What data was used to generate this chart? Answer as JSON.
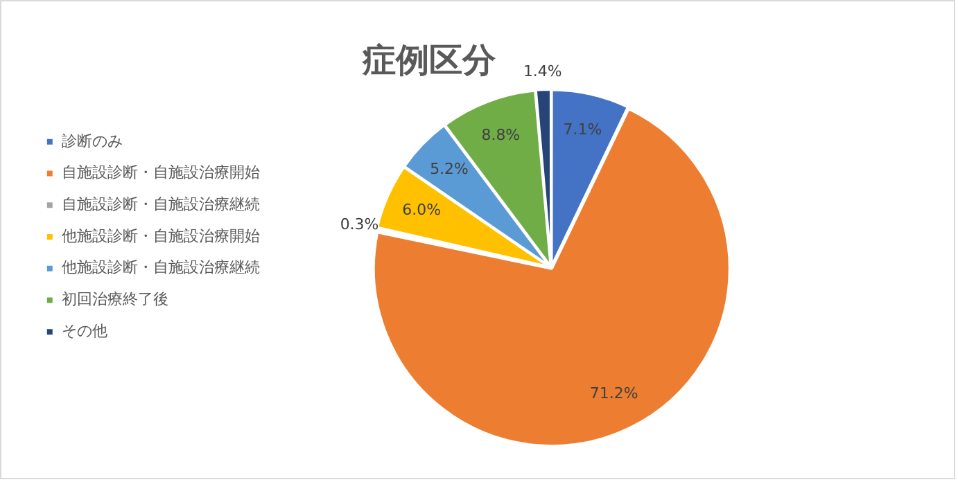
{
  "chart_data": {
    "type": "pie",
    "title": "症例区分",
    "categories": [
      "診断のみ",
      "自施設診断・自施設治療開始",
      "自施設診断・自施設治療継続",
      "他施設診断・自施設治療開始",
      "他施設診断・自施設治療継続",
      "初回治療終了後",
      "その他"
    ],
    "values": [
      7.1,
      71.2,
      0.3,
      6.0,
      5.2,
      8.8,
      1.4
    ],
    "colors": [
      "#4472c4",
      "#ed7d31",
      "#a5a5a5",
      "#ffc000",
      "#5b9bd5",
      "#70ad47",
      "#264478"
    ],
    "value_labels": [
      "7.1%",
      "71.2%",
      "0.3%",
      "6.0%",
      "5.2%",
      "8.8%",
      "1.4%"
    ],
    "legend": "left"
  }
}
